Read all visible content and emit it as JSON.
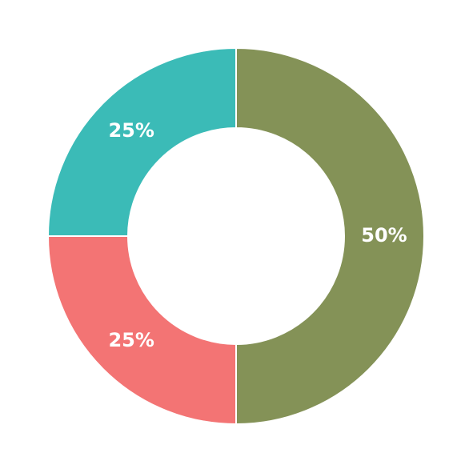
{
  "chart_data": {
    "type": "donut",
    "values": [
      50,
      25,
      25
    ],
    "value_labels": [
      "50%",
      "25%",
      "25%"
    ],
    "colors": [
      "#849257",
      "#f37474",
      "#3bbbb7"
    ]
  }
}
